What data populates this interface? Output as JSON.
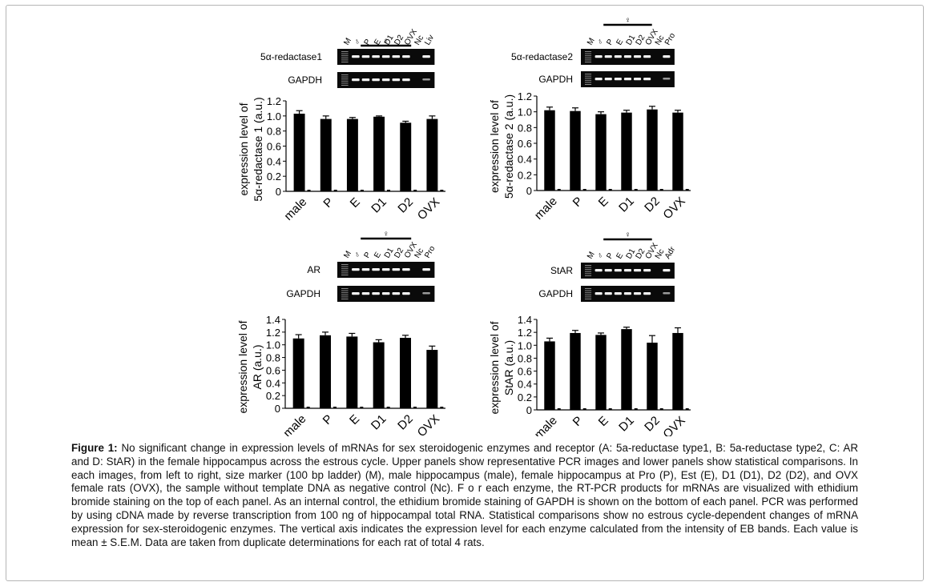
{
  "figure": {
    "caption_label": "Figure 1:",
    "caption_text": "No significant change in expression levels of mRNAs for sex steroidogenic enzymes and receptor (A: 5a-reductase type1, B: 5a-reductase type2, C: AR and D: StAR) in the female hippocampus across the estrous cycle. Upper panels show representative PCR images and lower panels show statistical comparisons. In each images, from left to right, size marker (100 bp ladder) (M), male hippocampus (male), female hippocampus at Pro (P), Est (E), D1 (D1), D2 (D2), and OVX female rats (OVX), the sample without template DNA as negative control (Nc). F o r each enzyme, the RT-PCR products for mRNAs are visualized with ethidium bromide staining on the top of each panel. As an internal control, the ethidium bromide staining of GAPDH is shown on the bottom of each panel. PCR was performed by using cDNA made by reverse transcription from 100 ng of hippocampal total RNA. Statistical comparisons show no estrous cycle-dependent changes of mRNA expression for sex-steroidogenic enzymes. The vertical axis indicates the expression level for each enzyme calculated from the intensity of EB bands. Each value is mean ± S.E.M. Data are taken from duplicate determinations for each rat of total 4 rats."
  },
  "female_symbol": "♀",
  "colors": {
    "bar": "#000000",
    "gel_bg": "#0a0a0a",
    "band": "#f2f2f2",
    "text": "#000000"
  },
  "chart_data": [
    {
      "type": "bar",
      "gel": {
        "lanes": [
          "M",
          "♂",
          "P",
          "E",
          "D1",
          "D2",
          "OVX",
          "Nc",
          "Liv"
        ],
        "target_label": "5α-redactase1",
        "control_label": "GAPDH"
      },
      "categories": [
        "male",
        "P",
        "E",
        "D1",
        "D2",
        "OVX"
      ],
      "values": [
        1.03,
        0.96,
        0.96,
        0.99,
        0.91,
        0.96
      ],
      "errors": [
        0.04,
        0.04,
        0.02,
        0.01,
        0.02,
        0.04
      ],
      "ylabel": [
        "expression level of",
        "5α-redactase 1 (a.u.)"
      ],
      "ylim": [
        0,
        1.2
      ],
      "yticks": [
        "0",
        "0.2",
        "0.4",
        "0.6",
        "0.8",
        "1.0",
        "1.2"
      ]
    },
    {
      "type": "bar",
      "gel": {
        "lanes": [
          "M",
          "♂",
          "P",
          "E",
          "D1",
          "D2",
          "OVX",
          "Nc",
          "Pro"
        ],
        "target_label": "5α-redactase2",
        "control_label": "GAPDH"
      },
      "categories": [
        "male",
        "P",
        "E",
        "D1",
        "D2",
        "OVX"
      ],
      "values": [
        1.02,
        1.01,
        0.97,
        0.99,
        1.03,
        0.99
      ],
      "errors": [
        0.04,
        0.04,
        0.03,
        0.03,
        0.04,
        0.03
      ],
      "ylabel": [
        "expression level of",
        "5α-redactase 2 (a.u.)"
      ],
      "ylim": [
        0,
        1.2
      ],
      "yticks": [
        "0",
        "0.2",
        "0.4",
        "0.6",
        "0.8",
        "1.0",
        "1.2"
      ]
    },
    {
      "type": "bar",
      "gel": {
        "lanes": [
          "M",
          "♂",
          "P",
          "E",
          "D1",
          "D2",
          "OVX",
          "Nc",
          "Pro"
        ],
        "target_label": "AR",
        "control_label": "GAPDH"
      },
      "categories": [
        "male",
        "P",
        "E",
        "D1",
        "D2",
        "OVX"
      ],
      "values": [
        1.1,
        1.15,
        1.13,
        1.04,
        1.11,
        0.92
      ],
      "errors": [
        0.06,
        0.05,
        0.05,
        0.04,
        0.04,
        0.06
      ],
      "ylabel": [
        "expression level of",
        "AR (a.u.)"
      ],
      "ylim": [
        0,
        1.4
      ],
      "yticks": [
        "0",
        "0.2",
        "0.4",
        "0.6",
        "0.8",
        "1.0",
        "1.2",
        "1.4"
      ]
    },
    {
      "type": "bar",
      "gel": {
        "lanes": [
          "M",
          "♂",
          "P",
          "E",
          "D1",
          "D2",
          "OVX",
          "Nc",
          "Adr"
        ],
        "target_label": "StAR",
        "control_label": "GAPDH"
      },
      "categories": [
        "male",
        "P",
        "E",
        "D1",
        "D2",
        "OVX"
      ],
      "values": [
        1.06,
        1.19,
        1.16,
        1.25,
        1.04,
        1.19
      ],
      "errors": [
        0.05,
        0.04,
        0.03,
        0.03,
        0.11,
        0.08
      ],
      "ylabel": [
        "expression level of",
        "StAR (a.u.)"
      ],
      "ylim": [
        0,
        1.4
      ],
      "yticks": [
        "0",
        "0.2",
        "0.4",
        "0.6",
        "0.8",
        "1.0",
        "1.2",
        "1.4"
      ]
    }
  ]
}
